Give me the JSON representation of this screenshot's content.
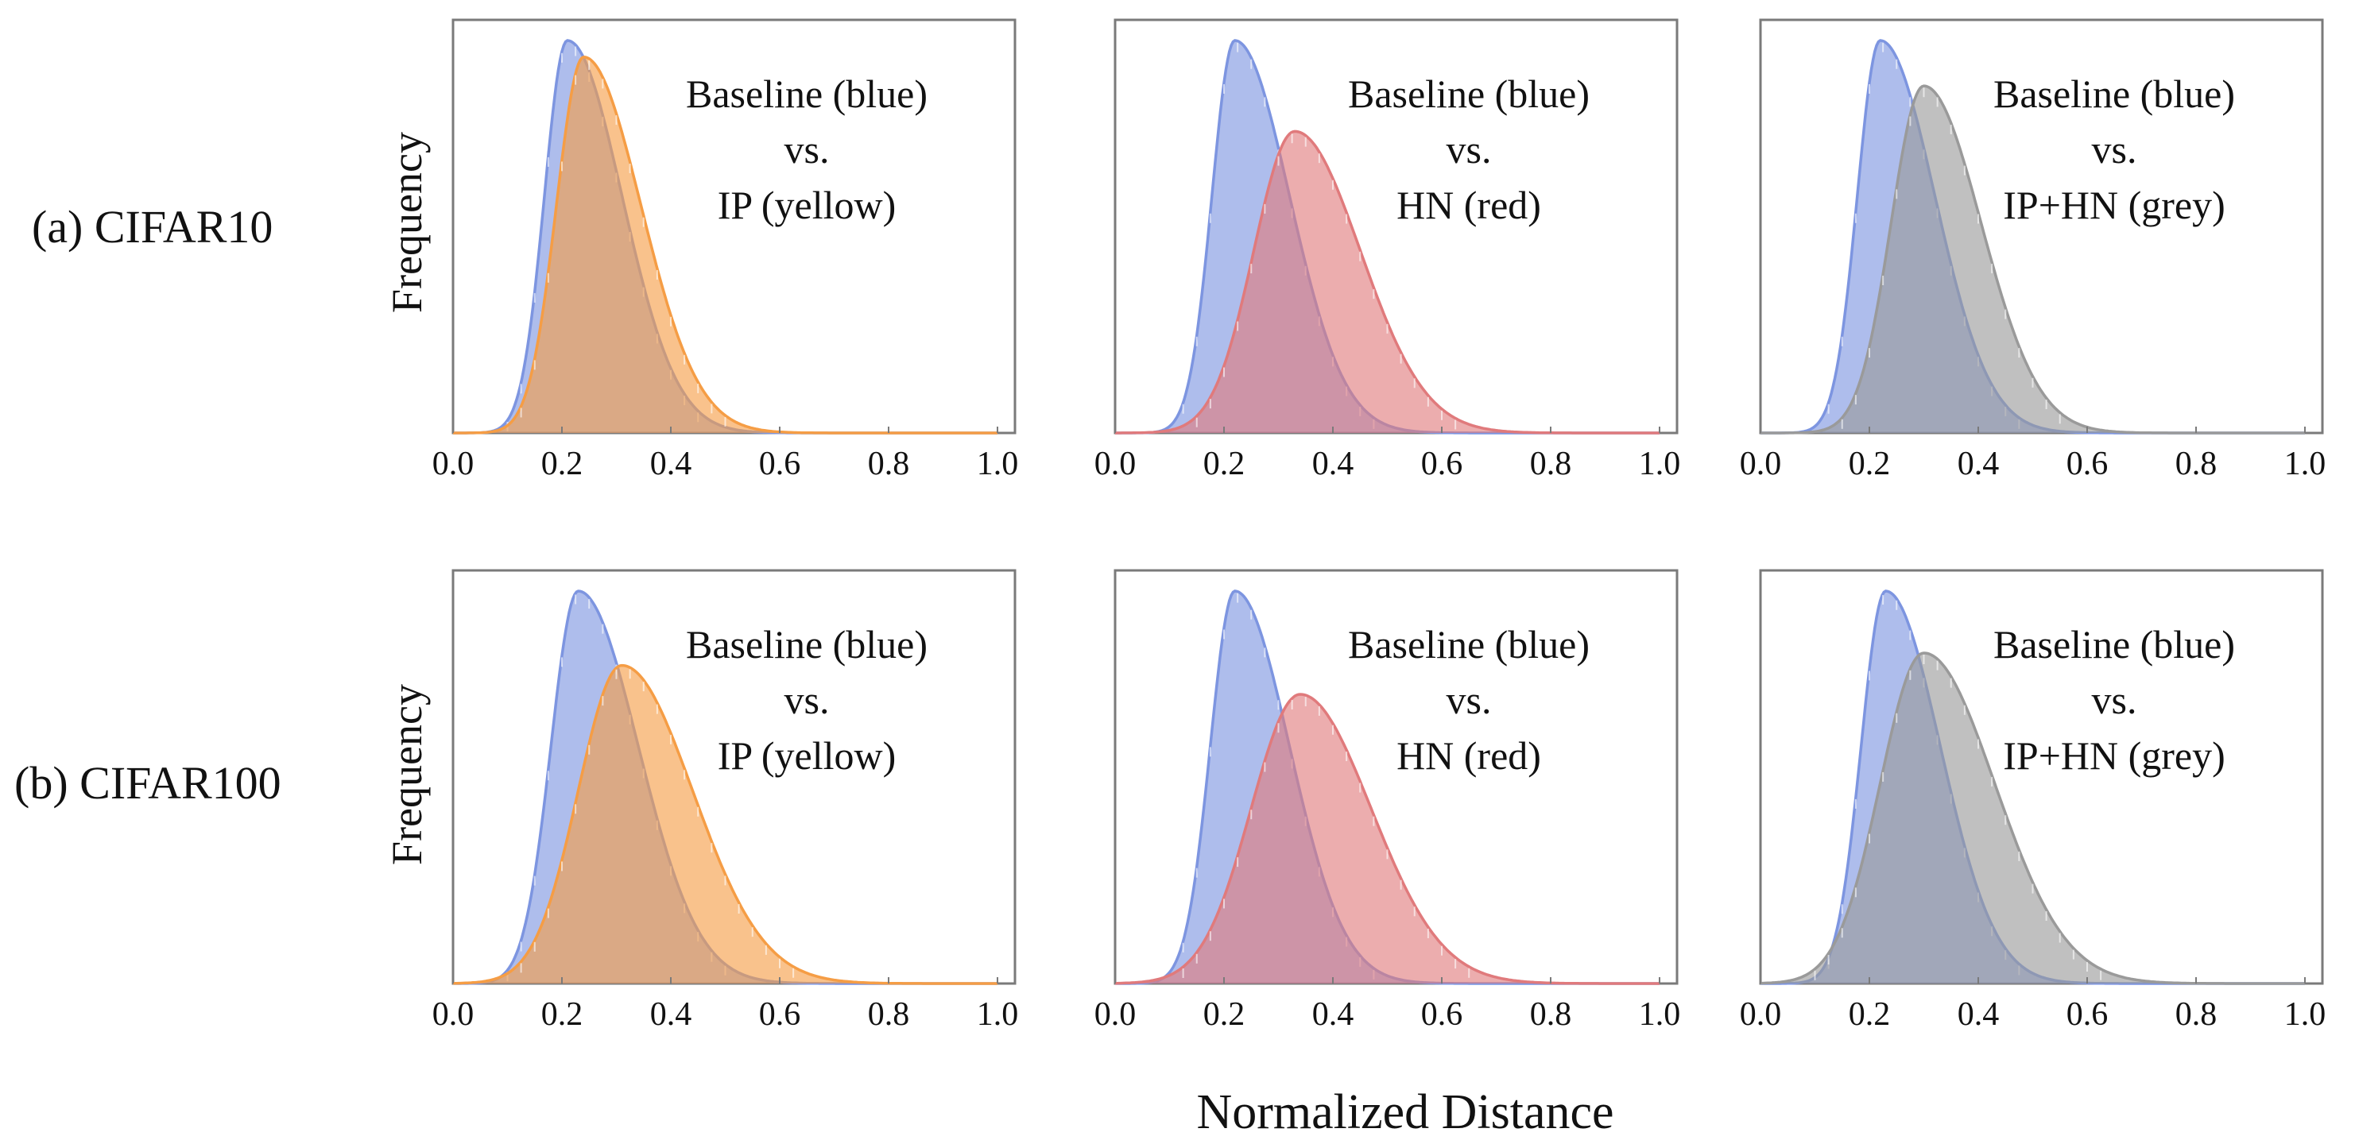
{
  "figure": {
    "ylabel": "Frequency",
    "xlabel": "Normalized Distance",
    "row_labels": [
      "(a) CIFAR10",
      "(b) CIFAR100"
    ]
  },
  "colors": {
    "baseline": "#7d95e0",
    "ip": "#f59d45",
    "hn": "#e07a7c",
    "iphn": "#9a9a9a",
    "axis": "#7a7a7a"
  },
  "chart_data": [
    {
      "type": "area",
      "row": 0,
      "col": 0,
      "xlim": [
        0.0,
        1.0
      ],
      "xticks": [
        "0.0",
        "0.2",
        "0.4",
        "0.6",
        "0.8",
        "1.0"
      ],
      "annotation": [
        "Baseline (blue)",
        "vs.",
        "IP (yellow)"
      ],
      "series": [
        {
          "name": "Baseline",
          "color": "baseline",
          "peak": 0.21,
          "width_left": 0.042,
          "width_right": 0.1,
          "height": 0.95
        },
        {
          "name": "IP",
          "color": "ip",
          "peak": 0.24,
          "width_left": 0.05,
          "width_right": 0.105,
          "height": 0.91
        }
      ]
    },
    {
      "type": "area",
      "row": 0,
      "col": 1,
      "xlim": [
        0.0,
        1.0
      ],
      "xticks": [
        "0.0",
        "0.2",
        "0.4",
        "0.6",
        "0.8",
        "1.0"
      ],
      "annotation": [
        "Baseline (blue)",
        "vs.",
        "HN (red)"
      ],
      "series": [
        {
          "name": "Baseline",
          "color": "baseline",
          "peak": 0.22,
          "width_left": 0.042,
          "width_right": 0.1,
          "height": 0.95
        },
        {
          "name": "HN",
          "color": "hn",
          "peak": 0.33,
          "width_left": 0.075,
          "width_right": 0.12,
          "height": 0.73
        }
      ]
    },
    {
      "type": "area",
      "row": 0,
      "col": 2,
      "xlim": [
        0.0,
        1.0
      ],
      "xticks": [
        "0.0",
        "0.2",
        "0.4",
        "0.6",
        "0.8",
        "1.0"
      ],
      "annotation": [
        "Baseline (blue)",
        "vs.",
        "IP+HN (grey)"
      ],
      "series": [
        {
          "name": "Baseline",
          "color": "baseline",
          "peak": 0.22,
          "width_left": 0.042,
          "width_right": 0.1,
          "height": 0.95
        },
        {
          "name": "IP+HN",
          "color": "iphn",
          "peak": 0.3,
          "width_left": 0.06,
          "width_right": 0.105,
          "height": 0.84
        }
      ]
    },
    {
      "type": "area",
      "row": 1,
      "col": 0,
      "xlim": [
        0.0,
        1.0
      ],
      "xticks": [
        "0.0",
        "0.2",
        "0.4",
        "0.6",
        "0.8",
        "1.0"
      ],
      "annotation": [
        "Baseline (blue)",
        "vs.",
        "IP (yellow)"
      ],
      "series": [
        {
          "name": "Baseline",
          "color": "baseline",
          "peak": 0.23,
          "width_left": 0.05,
          "width_right": 0.11,
          "height": 0.95
        },
        {
          "name": "IP",
          "color": "ip",
          "peak": 0.31,
          "width_left": 0.08,
          "width_right": 0.13,
          "height": 0.77
        }
      ]
    },
    {
      "type": "area",
      "row": 1,
      "col": 1,
      "xlim": [
        0.0,
        1.0
      ],
      "xticks": [
        "0.0",
        "0.2",
        "0.4",
        "0.6",
        "0.8",
        "1.0"
      ],
      "annotation": [
        "Baseline (blue)",
        "vs.",
        "HN (red)"
      ],
      "series": [
        {
          "name": "Baseline",
          "color": "baseline",
          "peak": 0.22,
          "width_left": 0.045,
          "width_right": 0.1,
          "height": 0.95
        },
        {
          "name": "HN",
          "color": "hn",
          "peak": 0.34,
          "width_left": 0.09,
          "width_right": 0.13,
          "height": 0.7
        }
      ]
    },
    {
      "type": "area",
      "row": 1,
      "col": 2,
      "xlim": [
        0.0,
        1.0
      ],
      "xticks": [
        "0.0",
        "0.2",
        "0.4",
        "0.6",
        "0.8",
        "1.0"
      ],
      "annotation": [
        "Baseline (blue)",
        "vs.",
        "IP+HN (grey)"
      ],
      "series": [
        {
          "name": "Baseline",
          "color": "baseline",
          "peak": 0.23,
          "width_left": 0.045,
          "width_right": 0.1,
          "height": 0.95
        },
        {
          "name": "IP+HN",
          "color": "iphn",
          "peak": 0.3,
          "width_left": 0.08,
          "width_right": 0.13,
          "height": 0.8
        }
      ]
    }
  ]
}
